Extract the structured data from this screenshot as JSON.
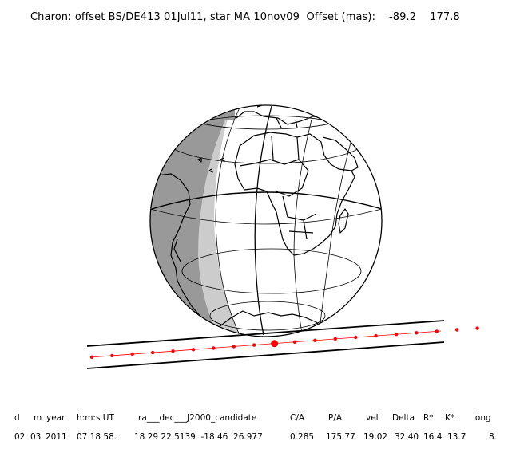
{
  "title": "Charon: offset BS/DE413 01Jul11, star MA 10nov09  Offset (mas):    -89.2    177.8",
  "table": {
    "headers": [
      "d",
      "m",
      "year",
      "h:m:s UT",
      "ra___dec___J2000_candidate",
      "C/A",
      "P/A",
      "vel",
      "Delta",
      "R*",
      "K*",
      "long"
    ],
    "values": [
      "02",
      "03",
      "2011",
      "07 18 58.",
      "18 29 22.5139  -18 46  26.977",
      "0.285",
      "175.77",
      "19.02",
      "32.40",
      "16.4",
      "13.7",
      "8."
    ]
  },
  "colors": {
    "night": "#999999",
    "twilight": "#cccccc",
    "day": "#ffffff",
    "lines": "#000000",
    "star_track": "#ff0000"
  },
  "track": {
    "dot_count": 20,
    "highlight_index": 9
  }
}
